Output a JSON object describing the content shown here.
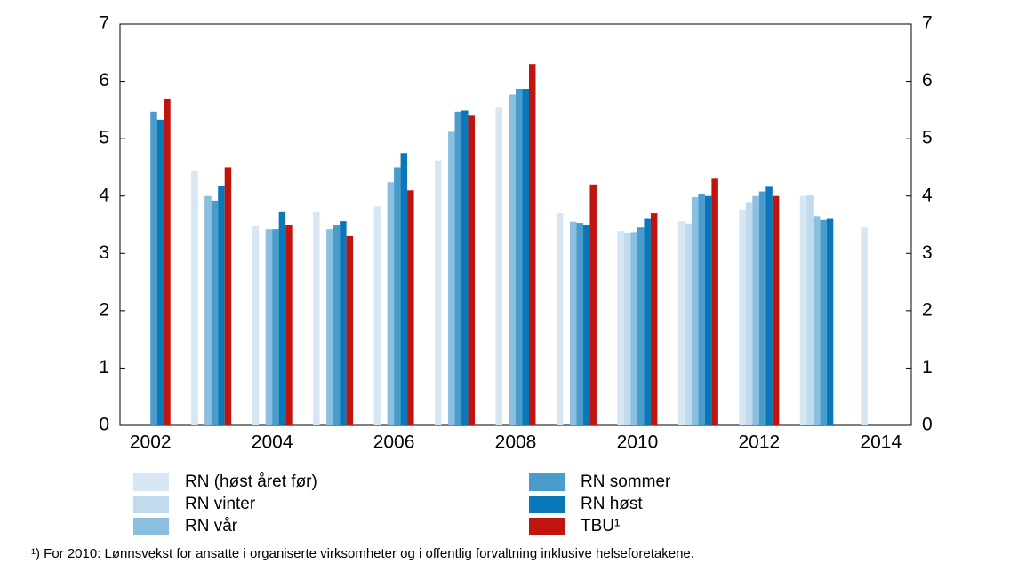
{
  "chart_data": {
    "type": "bar",
    "categories": [
      "2002",
      null,
      "2004",
      null,
      "2006",
      null,
      "2008",
      null,
      "2010",
      null,
      "2012",
      null,
      "2014"
    ],
    "series": [
      {
        "name": "RN (høst året før)",
        "color": "#d6e6f2",
        "values": [
          null,
          4.43,
          3.48,
          3.72,
          3.82,
          4.62,
          5.54,
          3.7,
          3.39,
          3.56,
          3.75,
          4.0,
          3.45
        ]
      },
      {
        "name": "RN vinter",
        "color": "#c1dbee",
        "values": [
          null,
          null,
          null,
          null,
          null,
          null,
          null,
          null,
          3.36,
          3.52,
          3.88,
          4.01,
          null
        ]
      },
      {
        "name": "RN vår",
        "color": "#8bbfdf",
        "values": [
          null,
          4.0,
          3.42,
          3.42,
          4.24,
          5.12,
          5.77,
          3.55,
          3.37,
          3.98,
          4.0,
          3.65,
          null
        ]
      },
      {
        "name": "RN sommer",
        "color": "#4a9ccc",
        "values": [
          5.47,
          3.92,
          3.42,
          3.5,
          4.5,
          5.47,
          5.87,
          3.53,
          3.45,
          4.04,
          4.08,
          3.58,
          null
        ]
      },
      {
        "name": "RN høst",
        "color": "#0a78b8",
        "values": [
          5.33,
          4.17,
          3.72,
          3.56,
          4.75,
          5.49,
          5.87,
          3.5,
          3.6,
          4.0,
          4.16,
          3.6,
          null
        ]
      },
      {
        "name": "TBU¹",
        "color": "#c0140f",
        "values": [
          5.7,
          4.5,
          3.5,
          3.3,
          4.1,
          5.4,
          6.3,
          4.2,
          3.7,
          4.3,
          4.0,
          null,
          null
        ]
      }
    ],
    "ylim": [
      0,
      7
    ],
    "yticks": [
      0,
      1,
      2,
      3,
      4,
      5,
      6,
      7
    ],
    "footnote": "¹) For 2010: Lønnsvekst for ansatte i organiserte virksomheter og i offentlig forvaltning inklusive helseforetakene."
  }
}
